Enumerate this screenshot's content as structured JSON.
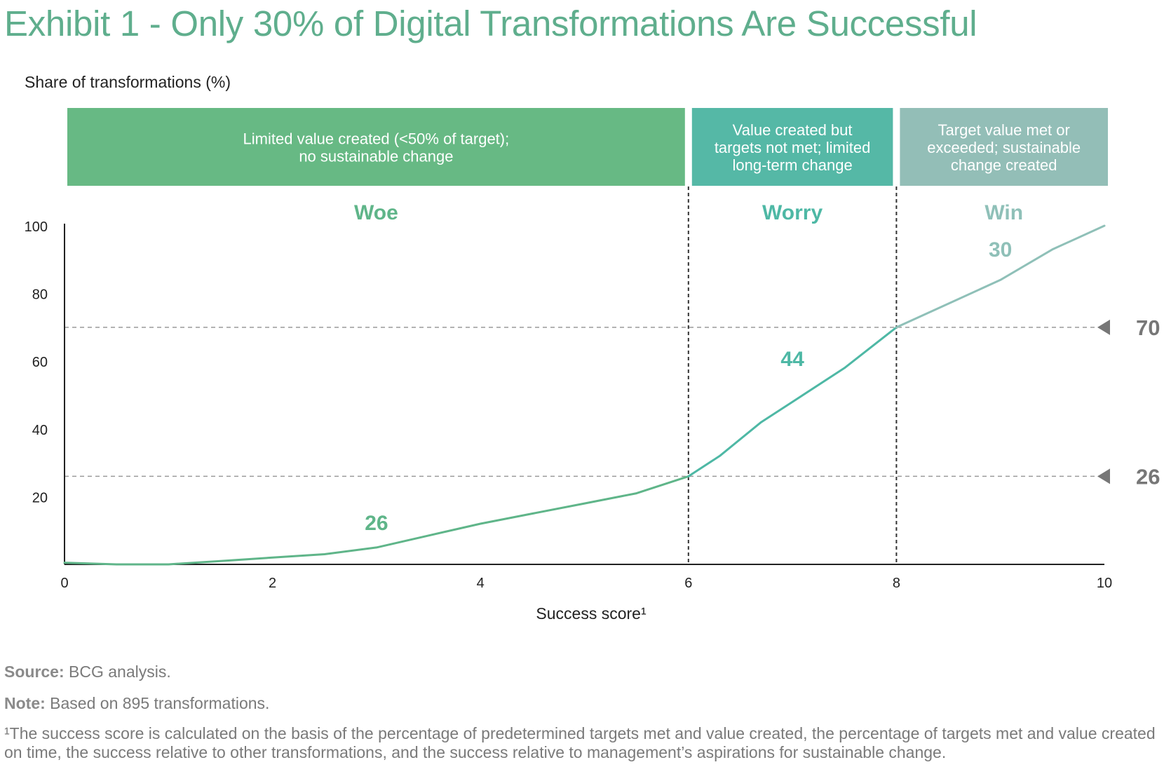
{
  "title": "Exhibit 1 - Only 30% of Digital Transformations Are Successful",
  "chart_data": {
    "type": "line",
    "title": "Exhibit 1 - Only 30% of Digital Transformations Are Successful",
    "ylabel": "Share of transformations (%)",
    "xlabel": "Success score¹",
    "xlim": [
      0,
      10
    ],
    "ylim": [
      0,
      100
    ],
    "x_ticks": [
      0,
      2,
      4,
      6,
      8,
      10
    ],
    "y_ticks": [
      20,
      40,
      60,
      80,
      100
    ],
    "grid": false,
    "series": [
      {
        "x": [
          0,
          0.5,
          1,
          1.5,
          2,
          2.5,
          3,
          3.5,
          4,
          4.5,
          5,
          5.5,
          6,
          6.3,
          6.7,
          7,
          7.5,
          8,
          8.5,
          9,
          9.5,
          10
        ],
        "values": [
          0.5,
          0,
          0,
          1,
          2,
          3,
          5,
          8.5,
          12,
          15,
          18,
          21,
          26,
          32,
          42,
          48,
          58,
          70,
          77,
          84,
          93,
          100
        ],
        "colors": {
          "woe": "#5fb589",
          "worry": "#4eb8a5",
          "win": "#8fc0b8"
        }
      }
    ],
    "reference_lines": [
      {
        "y": 70,
        "label": "70"
      },
      {
        "y": 26,
        "label": "26"
      }
    ],
    "divider_x": [
      6,
      8
    ],
    "segments": [
      {
        "name": "Woe",
        "value": "26",
        "x_range": [
          0,
          6
        ],
        "banner": [
          "Limited value created (<50% of target);",
          "no sustainable change"
        ],
        "color": "#5fb589",
        "banner_color": "#67b984"
      },
      {
        "name": "Worry",
        "value": "44",
        "x_range": [
          6,
          8
        ],
        "banner": [
          "Value created but",
          "targets not met; limited",
          "long-term change"
        ],
        "color": "#4eb8a5",
        "banner_color": "#55b8a6"
      },
      {
        "name": "Win",
        "value": "30",
        "x_range": [
          8,
          10
        ],
        "banner": [
          "Target value met or",
          "exceeded; sustainable",
          "change created"
        ],
        "color": "#8fc0b8",
        "banner_color": "#93beb7"
      }
    ]
  },
  "notes": {
    "source_label": "Source:",
    "source_text": "BCG analysis.",
    "note_label": "Note:",
    "note_text": "Based on 895 transformations.",
    "footnote": "¹The success score is calculated on the basis of the percentage of predetermined targets met and value created, the percentage of targets met and value created on time, the success relative to other transformations, and the success relative to management’s aspirations for sustainable change."
  }
}
